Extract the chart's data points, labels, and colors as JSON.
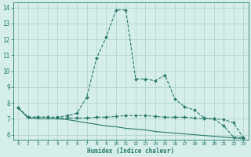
{
  "title": "",
  "xlabel": "Humidex (Indice chaleur)",
  "bg_color": "#d5eeeb",
  "grid_color": "#b8d8d4",
  "line_color": "#2a7a6a",
  "ylim": [
    5.7,
    14.3
  ],
  "xlim": [
    -0.5,
    23.5
  ],
  "yticks": [
    6,
    7,
    8,
    9,
    10,
    11,
    12,
    13,
    14
  ],
  "xticks": [
    0,
    1,
    2,
    3,
    4,
    5,
    6,
    7,
    8,
    9,
    10,
    11,
    12,
    13,
    14,
    15,
    16,
    17,
    18,
    19,
    20,
    21,
    22,
    23
  ],
  "line1_x": [
    0,
    1,
    2,
    3,
    4,
    5,
    6,
    7,
    8,
    9,
    10,
    11,
    12,
    13,
    14,
    15,
    16,
    17,
    18,
    19,
    20,
    21,
    22,
    23
  ],
  "line1_y": [
    7.7,
    7.1,
    7.1,
    7.1,
    7.1,
    7.2,
    7.35,
    8.35,
    10.8,
    12.15,
    13.85,
    13.85,
    9.5,
    9.5,
    9.4,
    9.75,
    8.25,
    7.75,
    7.55,
    7.05,
    7.0,
    6.55,
    5.85,
    5.85
  ],
  "line2_x": [
    0,
    1,
    2,
    3,
    4,
    5,
    6,
    7,
    8,
    9,
    10,
    11,
    12,
    13,
    14,
    15,
    16,
    17,
    18,
    19,
    20,
    21,
    22,
    23
  ],
  "line2_y": [
    7.7,
    7.1,
    7.1,
    7.1,
    7.05,
    7.05,
    7.05,
    7.05,
    7.1,
    7.1,
    7.15,
    7.2,
    7.2,
    7.2,
    7.15,
    7.1,
    7.1,
    7.1,
    7.05,
    7.0,
    7.0,
    6.95,
    6.75,
    5.8
  ],
  "line3_x": [
    0,
    1,
    2,
    3,
    4,
    5,
    6,
    7,
    8,
    9,
    10,
    11,
    12,
    13,
    14,
    15,
    16,
    17,
    18,
    19,
    20,
    21,
    22,
    23
  ],
  "line3_y": [
    7.7,
    7.05,
    7.0,
    7.0,
    7.0,
    6.95,
    6.85,
    6.75,
    6.65,
    6.55,
    6.5,
    6.4,
    6.35,
    6.3,
    6.2,
    6.15,
    6.1,
    6.05,
    6.0,
    5.95,
    5.9,
    5.85,
    5.8,
    5.75
  ]
}
